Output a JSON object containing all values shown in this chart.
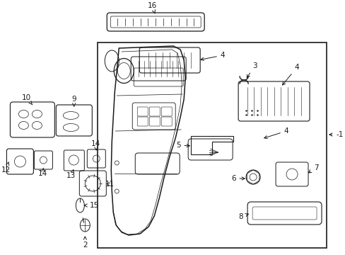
{
  "background_color": "#ffffff",
  "figure_width": 4.89,
  "figure_height": 3.6,
  "dpi": 100,
  "label_fontsize": 7.5,
  "line_color": "#1a1a1a"
}
